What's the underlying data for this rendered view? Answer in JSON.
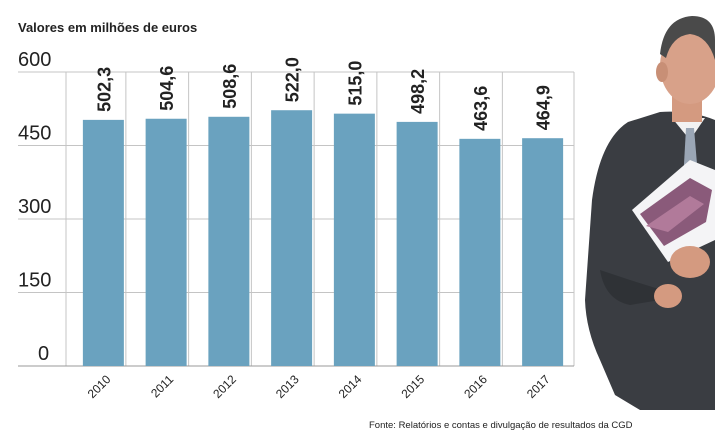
{
  "chart_data": {
    "type": "bar",
    "title": "",
    "subtitle": "Valores em milhões de euros",
    "categories": [
      "2010",
      "2011",
      "2012",
      "2013",
      "2014",
      "2015",
      "2016",
      "2017"
    ],
    "values": [
      502.3,
      504.6,
      508.6,
      522.0,
      515.0,
      498.2,
      463.6,
      464.9
    ],
    "data_labels": [
      "502,3",
      "504,6",
      "508,6",
      "522,0",
      "515,0",
      "498,2",
      "463,6",
      "464,9"
    ],
    "yticks": [
      0,
      150,
      300,
      450,
      600
    ],
    "ylim": [
      0,
      600
    ],
    "xlabel": "",
    "ylabel": "",
    "grid": true,
    "legend": "none",
    "bar_color": "#6aa2bf",
    "grid_color": "#c4c4c4",
    "source": "Fonte: Relatórios e contas e divulgação de resultados da CGD"
  },
  "photo": {
    "description_icon": "person-photo",
    "suit_color": "#3a3d42",
    "document_color": "#8a5a7a"
  }
}
